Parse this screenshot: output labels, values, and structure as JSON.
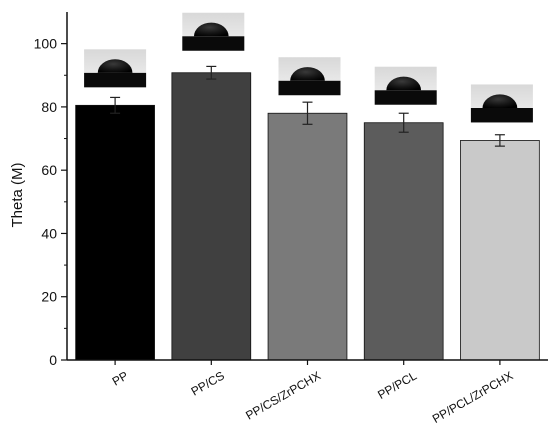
{
  "chart_data": {
    "type": "bar",
    "ylabel": "Theta (M)",
    "xlabel": "",
    "ylim": [
      0,
      110
    ],
    "yticks": [
      "0",
      "20",
      "40",
      "60",
      "80",
      "100"
    ],
    "categories": [
      "PP",
      "PP/CS",
      "PP/CS/ZrPCHX",
      "PP/PCL",
      "PP/PCL/ZrPCHX"
    ],
    "values": [
      80.5,
      90.8,
      78.0,
      75.0,
      69.4
    ],
    "errors": [
      2.5,
      2.0,
      3.5,
      3.0,
      1.8
    ],
    "bar_colors": [
      "#000000",
      "#404040",
      "#7a7a7a",
      "#5c5c5c",
      "#c9c9c9"
    ],
    "category_label_rotation_deg": -30,
    "inset_images": [
      "droplet-photo",
      "droplet-photo",
      "droplet-photo",
      "droplet-photo",
      "droplet-photo"
    ],
    "grid": false,
    "legend": "none"
  }
}
